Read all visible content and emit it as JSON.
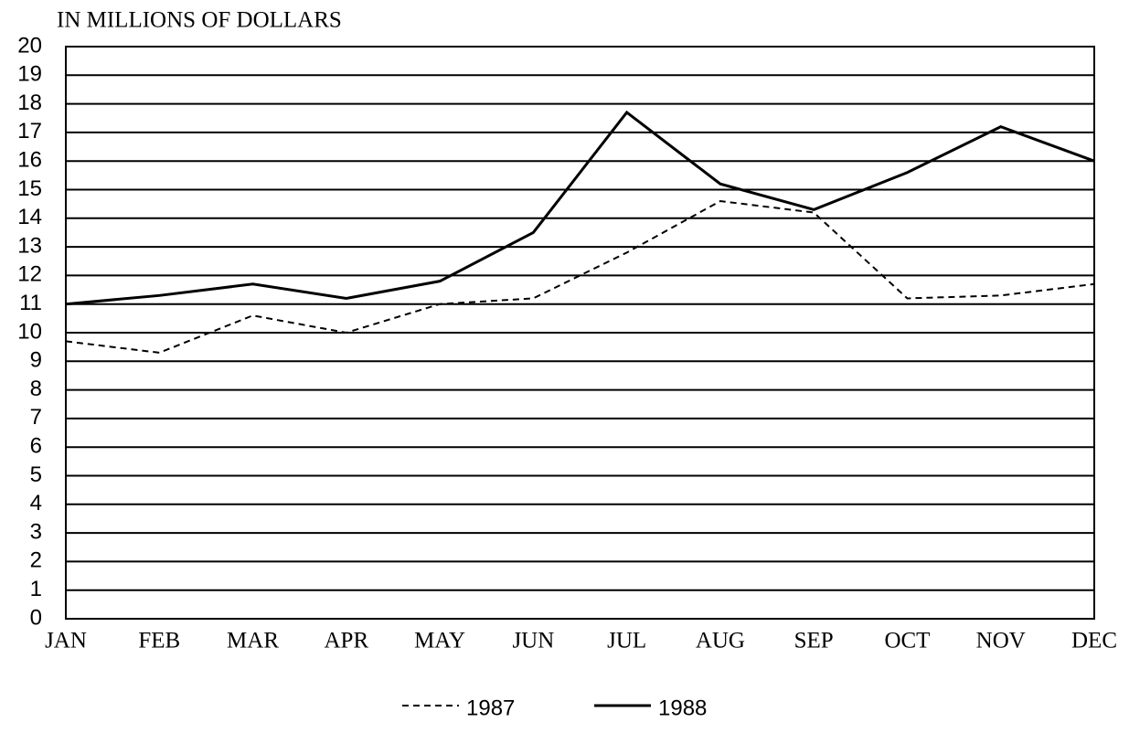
{
  "chart_data": {
    "type": "line",
    "ylabel": "IN MILLIONS OF DOLLARS",
    "categories": [
      "JAN",
      "FEB",
      "MAR",
      "APR",
      "MAY",
      "JUN",
      "JUL",
      "AUG",
      "SEP",
      "OCT",
      "NOV",
      "DEC"
    ],
    "series": [
      {
        "name": "1987",
        "color": "#000000",
        "linestyle": "dashed",
        "values": [
          9.7,
          9.3,
          10.6,
          10.0,
          11.0,
          11.2,
          12.8,
          14.6,
          14.2,
          11.2,
          11.3,
          11.7
        ]
      },
      {
        "name": "1988",
        "color": "#000000",
        "linestyle": "solid",
        "values": [
          11.0,
          11.3,
          11.7,
          11.2,
          11.8,
          13.5,
          17.7,
          15.2,
          14.3,
          15.6,
          17.2,
          16.0
        ]
      }
    ],
    "ylim": [
      0,
      20
    ],
    "yticks": [
      0,
      1,
      2,
      3,
      4,
      5,
      6,
      7,
      8,
      9,
      10,
      11,
      12,
      13,
      14,
      15,
      16,
      17,
      18,
      19,
      20
    ],
    "grid": true,
    "legend": "bottom"
  }
}
